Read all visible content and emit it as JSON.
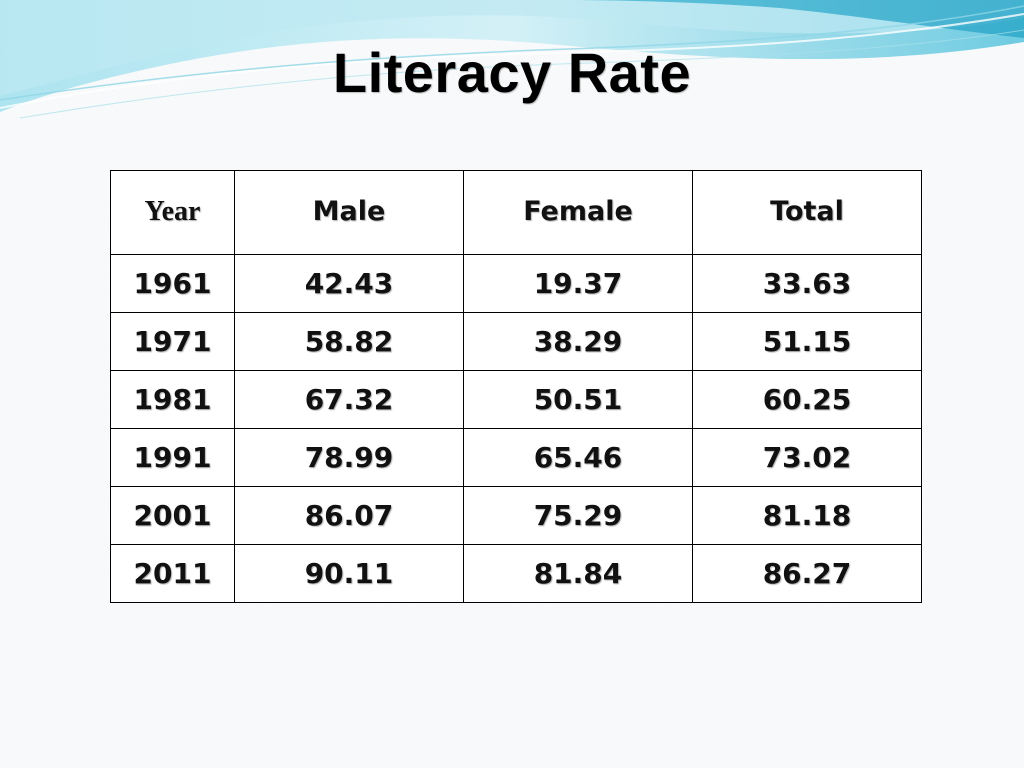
{
  "slide": {
    "title": "Literacy Rate"
  },
  "table": {
    "headers": [
      "Year",
      "Male",
      "Female",
      "Total"
    ],
    "rows": [
      [
        "1961",
        "42.43",
        "19.37",
        "33.63"
      ],
      [
        "1971",
        "58.82",
        "38.29",
        "51.15"
      ],
      [
        "1981",
        "67.32",
        "50.51",
        "60.25"
      ],
      [
        "1991",
        "78.99",
        "65.46",
        "73.02"
      ],
      [
        "2001",
        "86.07",
        "75.29",
        "81.18"
      ],
      [
        "2011",
        "90.11",
        "81.84",
        "86.27"
      ]
    ]
  },
  "colors": {
    "wave_light": "#c6ecf4",
    "wave_mid": "#7fd3e6",
    "wave_dark": "#3fb6d3",
    "text": "#000000",
    "table_border": "#000000"
  }
}
